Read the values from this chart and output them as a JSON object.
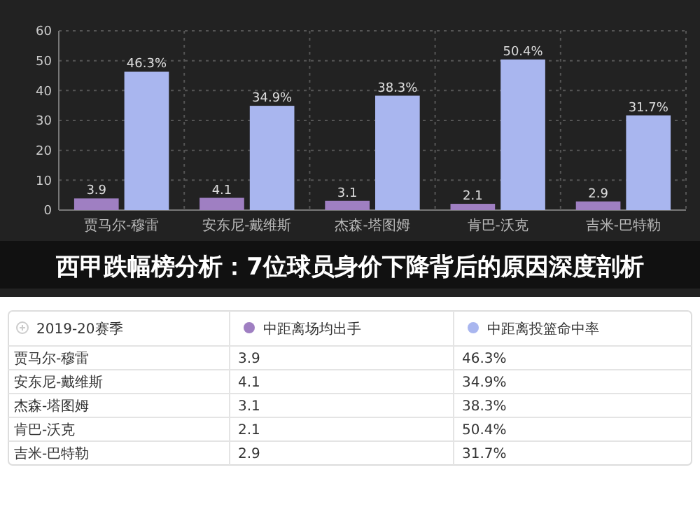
{
  "chart_data": {
    "type": "bar",
    "title": "西甲跌幅榜分析：7位球员身价下降背后的原因深度剖析",
    "legend_title": "2019-20赛季",
    "categories": [
      "贾马尔-穆雷",
      "安东尼-戴维斯",
      "杰森-塔图姆",
      "肯巴-沃克",
      "吉米-巴特勒"
    ],
    "series": [
      {
        "name": "中距离场均出手",
        "color": "#9f7fc2",
        "values": [
          3.9,
          4.1,
          3.1,
          2.1,
          2.9
        ],
        "value_labels": [
          "3.9",
          "4.1",
          "3.1",
          "2.1",
          "2.9"
        ]
      },
      {
        "name": "中距离投篮命中率",
        "color": "#a9b6ef",
        "values": [
          46.3,
          34.9,
          38.3,
          50.4,
          31.7
        ],
        "value_labels": [
          "46.3%",
          "34.9%",
          "38.3%",
          "50.4%",
          "31.7%"
        ]
      }
    ],
    "ylim": [
      0,
      60
    ],
    "yticks": [
      0,
      10,
      20,
      30,
      40,
      50,
      60
    ],
    "grid": true,
    "legend": "bottom",
    "data_labels": true
  }
}
